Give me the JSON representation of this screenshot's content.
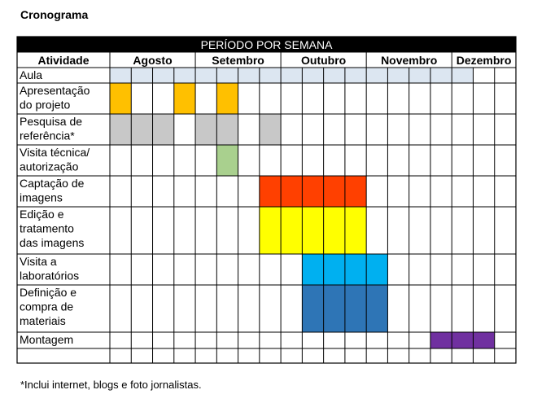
{
  "title": "Cronograma",
  "header": {
    "period_label": "PERÍODO POR SEMANA",
    "activity_label": "Atividade"
  },
  "months": [
    "Agosto",
    "Setembro",
    "Outubro",
    "Novembro",
    "Dezembro"
  ],
  "activities": [
    {
      "lines": [
        "Aula"
      ],
      "cells": [
        {
          "weeks": [
            0,
            1,
            2,
            3,
            4,
            5,
            6,
            7,
            8,
            9,
            10,
            11,
            12,
            13,
            14,
            15,
            16
          ],
          "color": "#dce6f1"
        }
      ]
    },
    {
      "lines": [
        "Apresentação",
        "do projeto"
      ],
      "cells": [
        {
          "weeks": [
            0,
            3,
            5
          ],
          "color": "#ffc000"
        }
      ]
    },
    {
      "lines": [
        "Pesquisa de",
        "referência*"
      ],
      "cells": [
        {
          "weeks": [
            0,
            1,
            2,
            4,
            5,
            7
          ],
          "color": "#c8c8c8"
        }
      ]
    },
    {
      "lines": [
        "Visita técnica/",
        "autorização"
      ],
      "cells": [
        {
          "weeks": [
            5
          ],
          "color": "#a9d08e"
        }
      ]
    },
    {
      "lines": [
        "Captação de",
        "imagens"
      ],
      "cells": [
        {
          "weeks": [
            7,
            8,
            9,
            10,
            11
          ],
          "color": "#ff4000"
        }
      ]
    },
    {
      "lines": [
        "Edição e",
        "tratamento",
        "das imagens"
      ],
      "cells": [
        {
          "weeks": [
            7,
            8,
            9,
            10,
            11
          ],
          "color": "#ffff00"
        }
      ]
    },
    {
      "lines": [
        "Visita a",
        "laboratórios"
      ],
      "cells": [
        {
          "weeks": [
            9,
            10,
            11,
            12
          ],
          "color": "#00b0f0"
        }
      ]
    },
    {
      "lines": [
        "Definição e",
        "compra de",
        "materiais"
      ],
      "cells": [
        {
          "weeks": [
            9,
            10,
            11,
            12
          ],
          "color": "#2e75b6"
        }
      ]
    },
    {
      "lines": [
        "Montagem"
      ],
      "cells": [
        {
          "weeks": [
            15,
            16,
            17
          ],
          "color": "#7030a0"
        }
      ]
    },
    {
      "lines": [],
      "cells": []
    }
  ],
  "footnote": "*Inclui  internet,  blogs e foto jornalistas."
}
